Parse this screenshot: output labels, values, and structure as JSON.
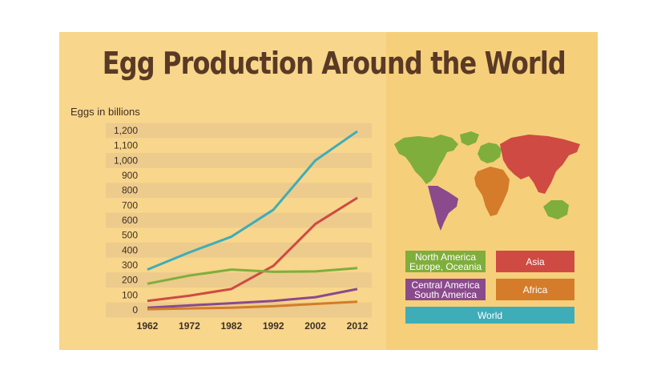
{
  "chart_data": {
    "type": "line",
    "title": "Egg Production Around the World",
    "ylabel": "Eggs in billions",
    "xlabel": "",
    "x": [
      1962,
      1972,
      1982,
      1992,
      2002,
      2012
    ],
    "ylim": [
      0,
      1200
    ],
    "yticks": [
      "0",
      "100",
      "200",
      "300",
      "400",
      "500",
      "600",
      "700",
      "800",
      "900",
      "1,000",
      "1,100",
      "1,200"
    ],
    "xticks": [
      "1962",
      "1972",
      "1982",
      "1992",
      "2002",
      "2012"
    ],
    "grid": "horizontal bands",
    "legend": "right",
    "series": [
      {
        "name": "World",
        "color": "#3eadb8",
        "values": [
          270,
          385,
          490,
          670,
          1000,
          1195
        ]
      },
      {
        "name": "Asia",
        "color": "#cf4a43",
        "values": [
          60,
          95,
          140,
          295,
          575,
          750
        ]
      },
      {
        "name": "North America Europe, Oceania",
        "color": "#7fae3c",
        "values": [
          175,
          230,
          270,
          255,
          258,
          280
        ]
      },
      {
        "name": "Central America South America",
        "color": "#8a4a8c",
        "values": [
          15,
          30,
          45,
          60,
          85,
          140
        ]
      },
      {
        "name": "Africa",
        "color": "#d47c2a",
        "values": [
          5,
          10,
          15,
          25,
          40,
          55
        ]
      }
    ]
  },
  "legend": {
    "items": [
      {
        "label": "North America\nEurope, Oceania",
        "color": "#7fae3c"
      },
      {
        "label": "Asia",
        "color": "#cf4a43"
      },
      {
        "label": "Central America\nSouth America",
        "color": "#8a4a8c"
      },
      {
        "label": "Africa",
        "color": "#d47c2a"
      },
      {
        "label": "World",
        "color": "#3eadb8"
      }
    ]
  },
  "map": {
    "icon": "world-map-icon"
  }
}
